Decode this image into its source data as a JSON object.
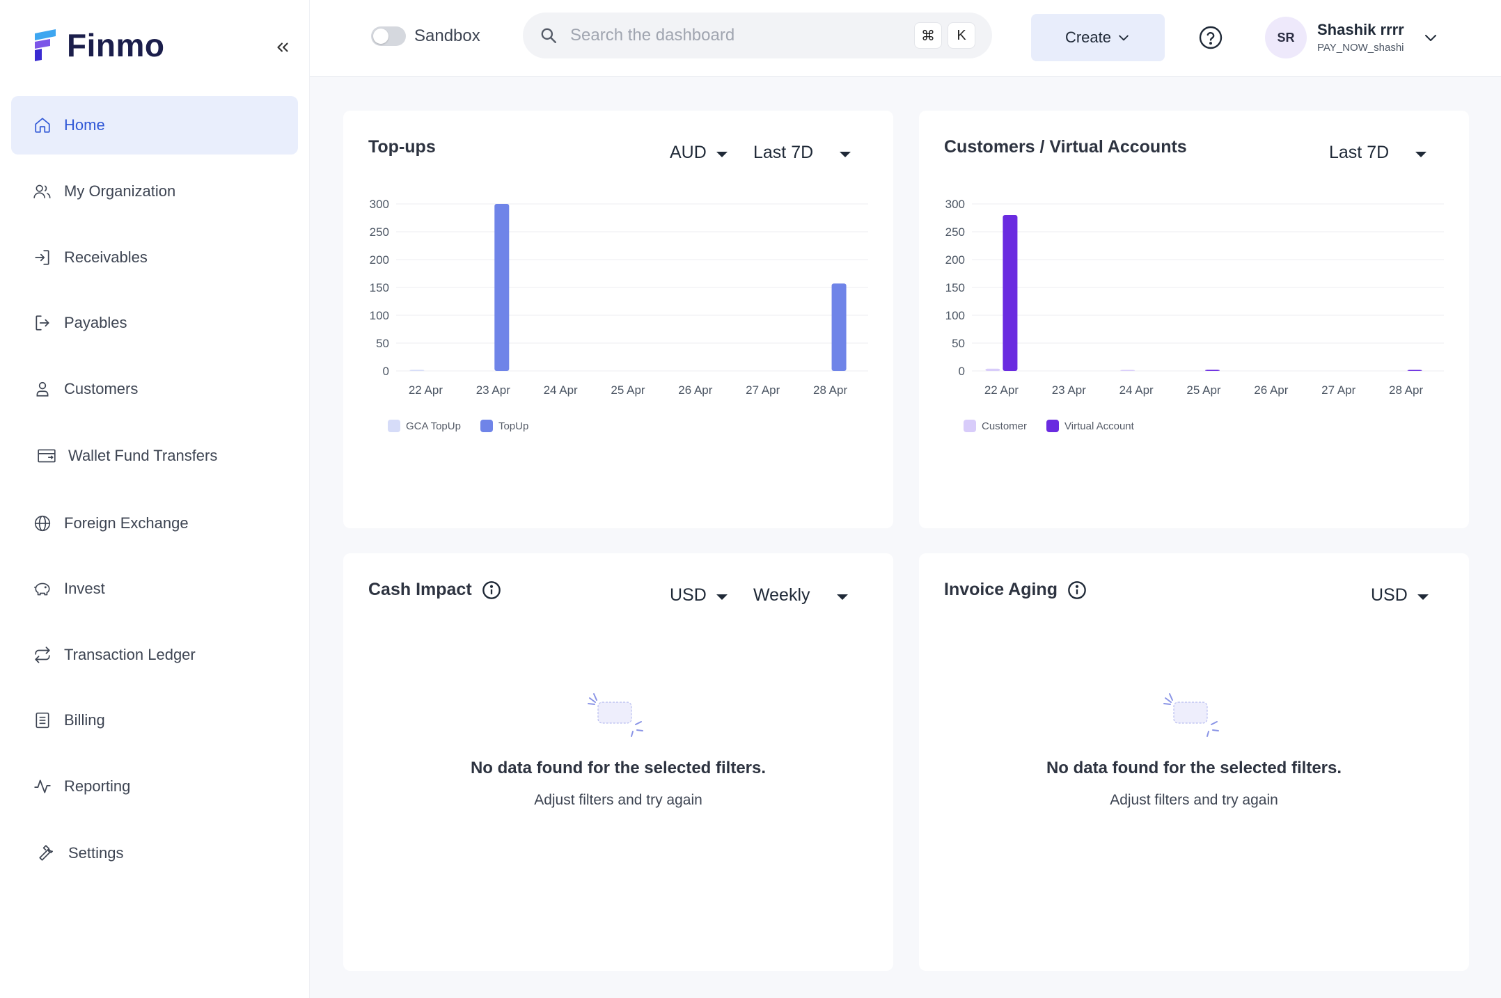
{
  "brand": {
    "name": "Finmo"
  },
  "sidebar": {
    "items": [
      {
        "label": "Home",
        "icon": "home-icon"
      },
      {
        "label": "My Organization",
        "icon": "users-icon"
      },
      {
        "label": "Receivables",
        "icon": "login-arrow-icon"
      },
      {
        "label": "Payables",
        "icon": "logout-arrow-icon"
      },
      {
        "label": "Customers",
        "icon": "user-icon"
      },
      {
        "label": "Wallet Fund Transfers",
        "icon": "wallet-transfer-icon"
      },
      {
        "label": "Foreign Exchange",
        "icon": "globe-icon"
      },
      {
        "label": "Invest",
        "icon": "piggy-bank-icon"
      },
      {
        "label": "Transaction Ledger",
        "icon": "repeat-icon"
      },
      {
        "label": "Billing",
        "icon": "receipt-icon"
      },
      {
        "label": "Reporting",
        "icon": "activity-icon"
      },
      {
        "label": "Settings",
        "icon": "wrench-icon"
      }
    ],
    "active_index": 0
  },
  "topbar": {
    "sandbox_label": "Sandbox",
    "sandbox_on": false,
    "search_placeholder": "Search the dashboard",
    "shortcut_keys": [
      "⌘",
      "K"
    ],
    "create_label": "Create",
    "user": {
      "initials": "SR",
      "name": "Shashik rrrr",
      "sub": "PAY_NOW_shashi"
    }
  },
  "cards": {
    "topups": {
      "title": "Top-ups",
      "currency": "AUD",
      "range": "Last 7D"
    },
    "customers": {
      "title": "Customers / Virtual Accounts",
      "range": "Last 7D"
    },
    "cash_impact": {
      "title": "Cash Impact",
      "currency": "USD",
      "range": "Weekly",
      "empty_title": "No data found for the selected filters.",
      "empty_sub": "Adjust filters and try again"
    },
    "invoice_aging": {
      "title": "Invoice Aging",
      "currency": "USD",
      "empty_title": "No data found for the selected filters.",
      "empty_sub": "Adjust filters and try again"
    }
  },
  "chart_data": [
    {
      "type": "bar",
      "title": "Top-ups",
      "categories": [
        "22 Apr",
        "23 Apr",
        "24 Apr",
        "25 Apr",
        "26 Apr",
        "27 Apr",
        "28 Apr"
      ],
      "ylim": [
        0,
        300
      ],
      "yticks": [
        0,
        50,
        100,
        150,
        200,
        250,
        300
      ],
      "series": [
        {
          "name": "GCA TopUp",
          "color": "#d6dcf8",
          "values": [
            2,
            0,
            0,
            0,
            0,
            0,
            0
          ]
        },
        {
          "name": "TopUp",
          "color": "#6f84e8",
          "values": [
            0,
            300,
            0,
            0,
            0,
            0,
            157
          ]
        }
      ],
      "legend": "bottom-left",
      "grid": true
    },
    {
      "type": "bar",
      "title": "Customers / Virtual Accounts",
      "categories": [
        "22 Apr",
        "23 Apr",
        "24 Apr",
        "25 Apr",
        "26 Apr",
        "27 Apr",
        "28 Apr"
      ],
      "ylim": [
        0,
        300
      ],
      "yticks": [
        0,
        50,
        100,
        150,
        200,
        250,
        300
      ],
      "series": [
        {
          "name": "Customer",
          "color": "#d8ccfa",
          "values": [
            4,
            0,
            1,
            0,
            0,
            0,
            0
          ]
        },
        {
          "name": "Virtual Account",
          "color": "#6a2be0",
          "values": [
            280,
            0,
            0,
            2,
            0,
            0,
            1
          ]
        }
      ],
      "legend": "bottom-left",
      "grid": true
    }
  ]
}
